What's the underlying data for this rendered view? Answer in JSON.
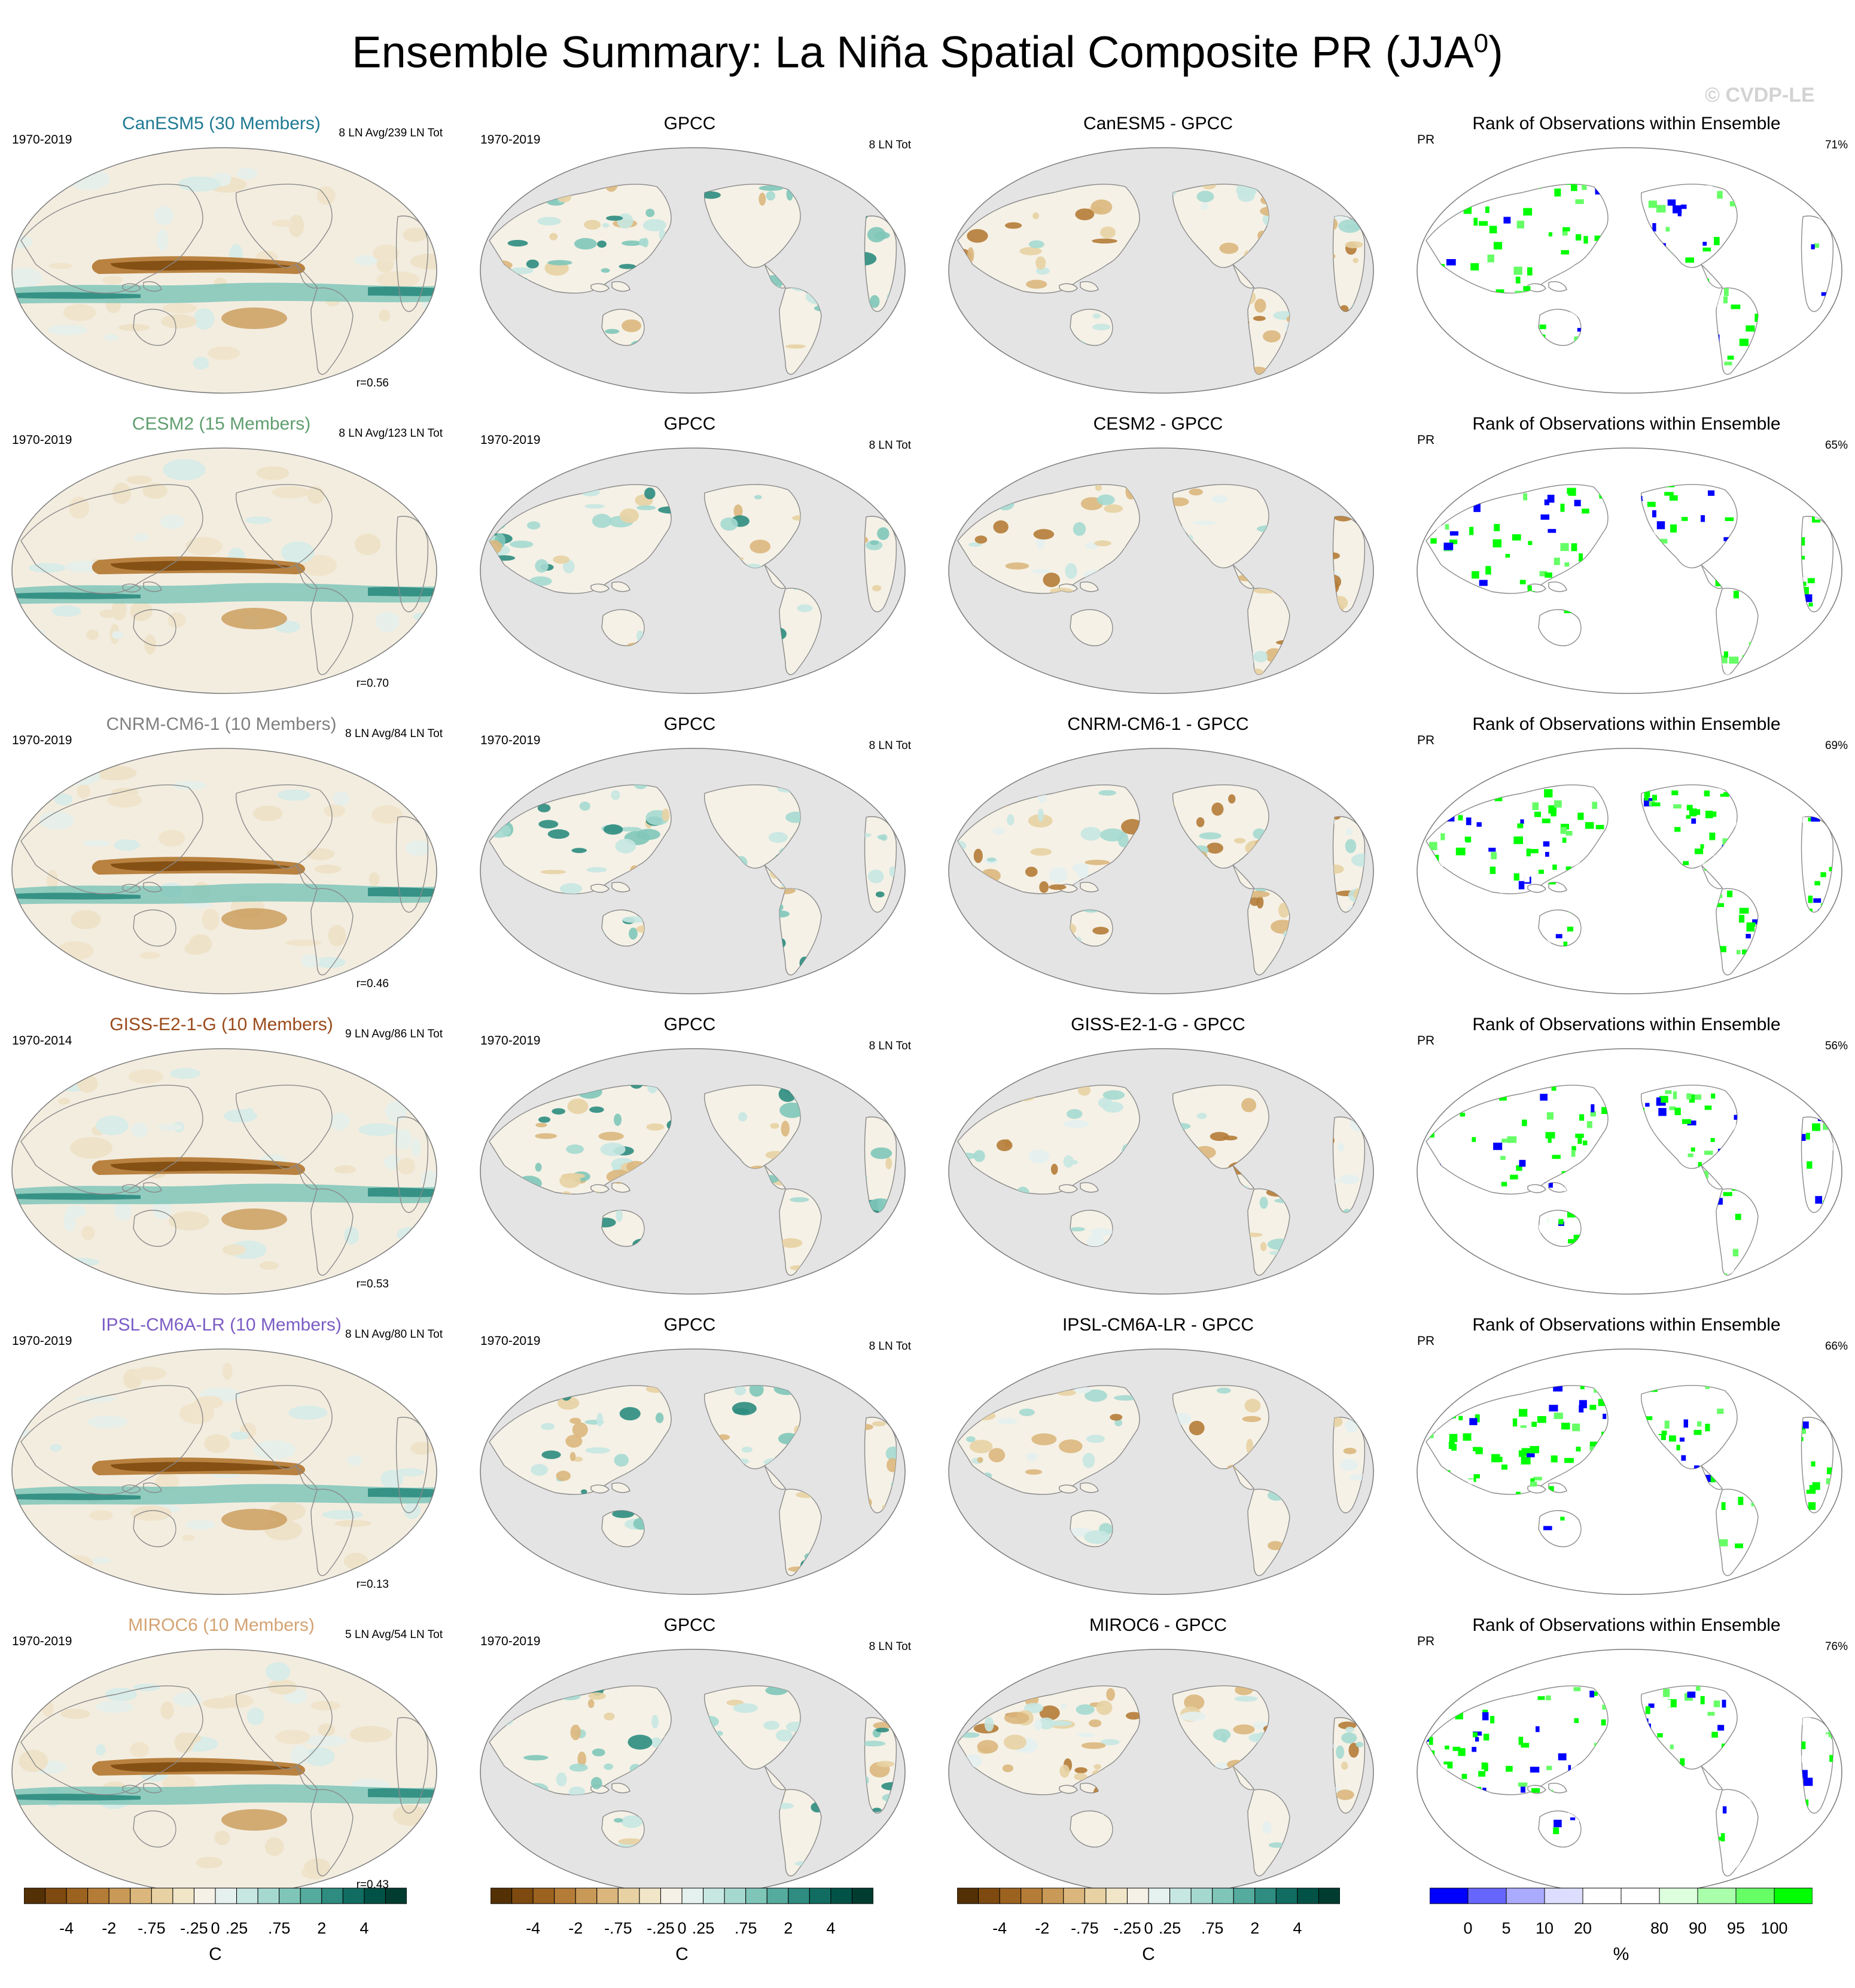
{
  "figure": {
    "title_main": "Ensemble Summary: La Niña Spatial Composite PR (JJA",
    "title_sup": "0",
    "title_end": ")",
    "watermark": "© CVDP-LE"
  },
  "rows": [
    {
      "model": "CanESM5 (30 Members)",
      "model_color": "#1f7a92",
      "period": "1970-2019",
      "model_count": "8 LN Avg/239 LN Tot",
      "corr": "r=0.56",
      "obs_title": "GPCC",
      "obs_period": "1970-2019",
      "obs_count": "8 LN Tot",
      "diff_title": "CanESM5 - GPCC",
      "rank_title": "Rank of Observations within Ensemble",
      "rank_var": "PR",
      "rank_pct": "71%"
    },
    {
      "model": "CESM2 (15 Members)",
      "model_color": "#5f9e6e",
      "period": "1970-2019",
      "model_count": "8 LN Avg/123 LN Tot",
      "corr": "r=0.70",
      "obs_title": "GPCC",
      "obs_period": "1970-2019",
      "obs_count": "8 LN Tot",
      "diff_title": "CESM2 - GPCC",
      "rank_title": "Rank of Observations within Ensemble",
      "rank_var": "PR",
      "rank_pct": "65%"
    },
    {
      "model": "CNRM-CM6-1 (10 Members)",
      "model_color": "#808080",
      "period": "1970-2019",
      "model_count": "8 LN Avg/84 LN Tot",
      "corr": "r=0.46",
      "obs_title": "GPCC",
      "obs_period": "1970-2019",
      "obs_count": "8 LN Tot",
      "diff_title": "CNRM-CM6-1 - GPCC",
      "rank_title": "Rank of Observations within Ensemble",
      "rank_var": "PR",
      "rank_pct": "69%"
    },
    {
      "model": "GISS-E2-1-G (10 Members)",
      "model_color": "#9a4a1a",
      "period": "1970-2014",
      "model_count": "9 LN Avg/86 LN Tot",
      "corr": "r=0.53",
      "obs_title": "GPCC",
      "obs_period": "1970-2019",
      "obs_count": "8 LN Tot",
      "diff_title": "GISS-E2-1-G - GPCC",
      "rank_title": "Rank of Observations within Ensemble",
      "rank_var": "PR",
      "rank_pct": "56%"
    },
    {
      "model": "IPSL-CM6A-LR (10 Members)",
      "model_color": "#7b5cc4",
      "period": "1970-2019",
      "model_count": "8 LN Avg/80 LN Tot",
      "corr": "r=0.13",
      "obs_title": "GPCC",
      "obs_period": "1970-2019",
      "obs_count": "8 LN Tot",
      "diff_title": "IPSL-CM6A-LR - GPCC",
      "rank_title": "Rank of Observations within Ensemble",
      "rank_var": "PR",
      "rank_pct": "66%"
    },
    {
      "model": "MIROC6 (10 Members)",
      "model_color": "#d4a373",
      "period": "1970-2019",
      "model_count": "5 LN Avg/54 LN Tot",
      "corr": "r=0.43",
      "obs_title": "GPCC",
      "obs_period": "1970-2019",
      "obs_count": "8 LN Tot",
      "diff_title": "MIROC6 - GPCC",
      "rank_title": "Rank of Observations within Ensemble",
      "rank_var": "PR",
      "rank_pct": "76%"
    }
  ],
  "colorbars": {
    "precip": {
      "colors": [
        "#543005",
        "#7f4a0f",
        "#9c6220",
        "#b57c37",
        "#c99a57",
        "#dbb77d",
        "#e8d2a3",
        "#f1e6c8",
        "#f5f1e6",
        "#e4f1ef",
        "#c7e7e2",
        "#a5d9d0",
        "#7fc6b9",
        "#55ab9e",
        "#2e8c80",
        "#116d61",
        "#005247",
        "#003c30"
      ],
      "labels": [
        "-4",
        "-2",
        "-.75",
        "-.25",
        "0",
        ".25",
        ".75",
        "2",
        "4"
      ],
      "unit": "C"
    },
    "rank": {
      "colors": [
        "#0000ff",
        "#6666ff",
        "#aaaaff",
        "#ddddff",
        "#ffffff",
        "#ffffff",
        "#ddffdd",
        "#aaffaa",
        "#66ff66",
        "#00ff00"
      ],
      "labels": [
        "0",
        "5",
        "10",
        "20",
        "80",
        "90",
        "95",
        "100"
      ],
      "unit": "%"
    }
  }
}
